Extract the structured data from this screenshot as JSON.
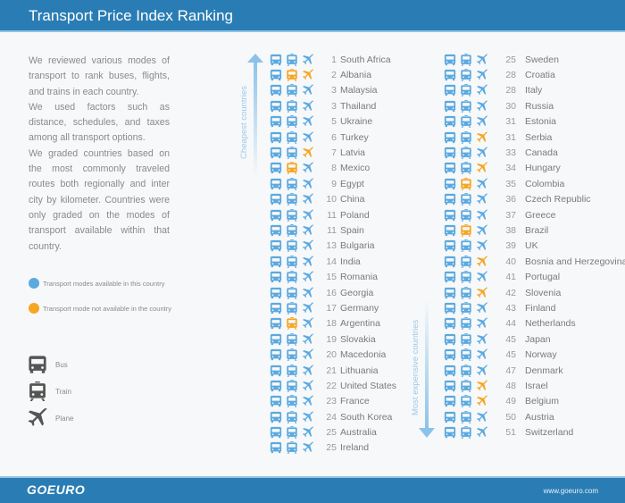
{
  "header": {
    "title": "Transport Price Index Ranking"
  },
  "intro": {
    "paragraphs": [
      "We reviewed various modes of transport to rank buses, flights, and trains in each country.",
      "We used factors such as distance, schedules, and taxes among all transport options.",
      "We graded countries based on the most commonly traveled routes both regionally and inter city by kilometer.  Countries were only graded on the modes of transport available within that country."
    ]
  },
  "legend": {
    "available": {
      "label": "Transport modes available in this country",
      "color": "#5aa9e0"
    },
    "unavailable": {
      "label": "Transport mode not available in the country",
      "color": "#f5a623"
    }
  },
  "modes": {
    "bus": "Bus",
    "train": "Train",
    "plane": "Plane"
  },
  "arrows": {
    "cheapest": "Cheapest countries",
    "most_expensive": "Most expensive countries"
  },
  "footer": {
    "logo": "GOEURO",
    "url": "www.goeuro.com"
  },
  "colors": {
    "header_bg": "#2a7db4",
    "available": "#5aa9e0",
    "unavailable": "#f5a623",
    "icon_dark": "#555555"
  },
  "chart_data": {
    "type": "table",
    "title": "Transport Price Index Ranking",
    "columns": [
      "rank",
      "country",
      "bus_available",
      "train_available",
      "plane_available"
    ],
    "rows": [
      {
        "rank": 1,
        "country": "South Africa",
        "bus": true,
        "train": true,
        "plane": true
      },
      {
        "rank": 2,
        "country": "Albania",
        "bus": true,
        "train": false,
        "plane": false
      },
      {
        "rank": 3,
        "country": "Malaysia",
        "bus": true,
        "train": true,
        "plane": true
      },
      {
        "rank": 3,
        "country": "Thailand",
        "bus": true,
        "train": true,
        "plane": true
      },
      {
        "rank": 5,
        "country": "Ukraine",
        "bus": true,
        "train": true,
        "plane": true
      },
      {
        "rank": 6,
        "country": "Turkey",
        "bus": true,
        "train": true,
        "plane": true
      },
      {
        "rank": 7,
        "country": "Latvia",
        "bus": true,
        "train": true,
        "plane": false
      },
      {
        "rank": 8,
        "country": "Mexico",
        "bus": true,
        "train": false,
        "plane": true
      },
      {
        "rank": 9,
        "country": "Egypt",
        "bus": true,
        "train": true,
        "plane": true
      },
      {
        "rank": 10,
        "country": "China",
        "bus": true,
        "train": true,
        "plane": true
      },
      {
        "rank": 11,
        "country": "Poland",
        "bus": true,
        "train": true,
        "plane": true
      },
      {
        "rank": 11,
        "country": "Spain",
        "bus": true,
        "train": true,
        "plane": true
      },
      {
        "rank": 13,
        "country": "Bulgaria",
        "bus": true,
        "train": true,
        "plane": true
      },
      {
        "rank": 14,
        "country": "India",
        "bus": true,
        "train": true,
        "plane": true
      },
      {
        "rank": 15,
        "country": "Romania",
        "bus": true,
        "train": true,
        "plane": true
      },
      {
        "rank": 16,
        "country": "Georgia",
        "bus": true,
        "train": true,
        "plane": true
      },
      {
        "rank": 17,
        "country": "Germany",
        "bus": true,
        "train": true,
        "plane": true
      },
      {
        "rank": 18,
        "country": "Argentina",
        "bus": true,
        "train": false,
        "plane": true
      },
      {
        "rank": 19,
        "country": "Slovakia",
        "bus": true,
        "train": true,
        "plane": true
      },
      {
        "rank": 20,
        "country": "Macedonia",
        "bus": true,
        "train": true,
        "plane": true
      },
      {
        "rank": 21,
        "country": "Lithuania",
        "bus": true,
        "train": true,
        "plane": true
      },
      {
        "rank": 22,
        "country": "United States",
        "bus": true,
        "train": true,
        "plane": true
      },
      {
        "rank": 23,
        "country": "France",
        "bus": true,
        "train": true,
        "plane": true
      },
      {
        "rank": 24,
        "country": "South Korea",
        "bus": true,
        "train": true,
        "plane": true
      },
      {
        "rank": 25,
        "country": "Australia",
        "bus": true,
        "train": true,
        "plane": true
      },
      {
        "rank": 25,
        "country": "Ireland",
        "bus": true,
        "train": true,
        "plane": true
      },
      {
        "rank": 25,
        "country": "Sweden",
        "bus": true,
        "train": true,
        "plane": true
      },
      {
        "rank": 28,
        "country": "Croatia",
        "bus": true,
        "train": true,
        "plane": true
      },
      {
        "rank": 28,
        "country": "Italy",
        "bus": true,
        "train": true,
        "plane": true
      },
      {
        "rank": 30,
        "country": "Russia",
        "bus": true,
        "train": true,
        "plane": true
      },
      {
        "rank": 31,
        "country": "Estonia",
        "bus": true,
        "train": true,
        "plane": true
      },
      {
        "rank": 31,
        "country": "Serbia",
        "bus": true,
        "train": true,
        "plane": false
      },
      {
        "rank": 33,
        "country": "Canada",
        "bus": true,
        "train": true,
        "plane": true
      },
      {
        "rank": 34,
        "country": "Hungary",
        "bus": true,
        "train": true,
        "plane": false
      },
      {
        "rank": 35,
        "country": "Colombia",
        "bus": true,
        "train": false,
        "plane": true
      },
      {
        "rank": 36,
        "country": "Czech Republic",
        "bus": true,
        "train": true,
        "plane": true
      },
      {
        "rank": 37,
        "country": "Greece",
        "bus": true,
        "train": true,
        "plane": true
      },
      {
        "rank": 38,
        "country": "Brazil",
        "bus": true,
        "train": false,
        "plane": true
      },
      {
        "rank": 39,
        "country": "UK",
        "bus": true,
        "train": true,
        "plane": true
      },
      {
        "rank": 40,
        "country": "Bosnia and Herzegovina",
        "bus": true,
        "train": true,
        "plane": false
      },
      {
        "rank": 41,
        "country": "Portugal",
        "bus": true,
        "train": true,
        "plane": true
      },
      {
        "rank": 42,
        "country": "Slovenia",
        "bus": true,
        "train": true,
        "plane": false
      },
      {
        "rank": 43,
        "country": "Finland",
        "bus": true,
        "train": true,
        "plane": true
      },
      {
        "rank": 44,
        "country": "Netherlands",
        "bus": true,
        "train": true,
        "plane": true
      },
      {
        "rank": 45,
        "country": "Japan",
        "bus": true,
        "train": true,
        "plane": true
      },
      {
        "rank": 45,
        "country": "Norway",
        "bus": true,
        "train": true,
        "plane": true
      },
      {
        "rank": 47,
        "country": "Denmark",
        "bus": true,
        "train": true,
        "plane": true
      },
      {
        "rank": 48,
        "country": "Israel",
        "bus": true,
        "train": true,
        "plane": false
      },
      {
        "rank": 49,
        "country": "Belgium",
        "bus": true,
        "train": true,
        "plane": false
      },
      {
        "rank": 50,
        "country": "Austria",
        "bus": true,
        "train": true,
        "plane": true
      },
      {
        "rank": 51,
        "country": "Switzerland",
        "bus": true,
        "train": true,
        "plane": true
      }
    ]
  }
}
